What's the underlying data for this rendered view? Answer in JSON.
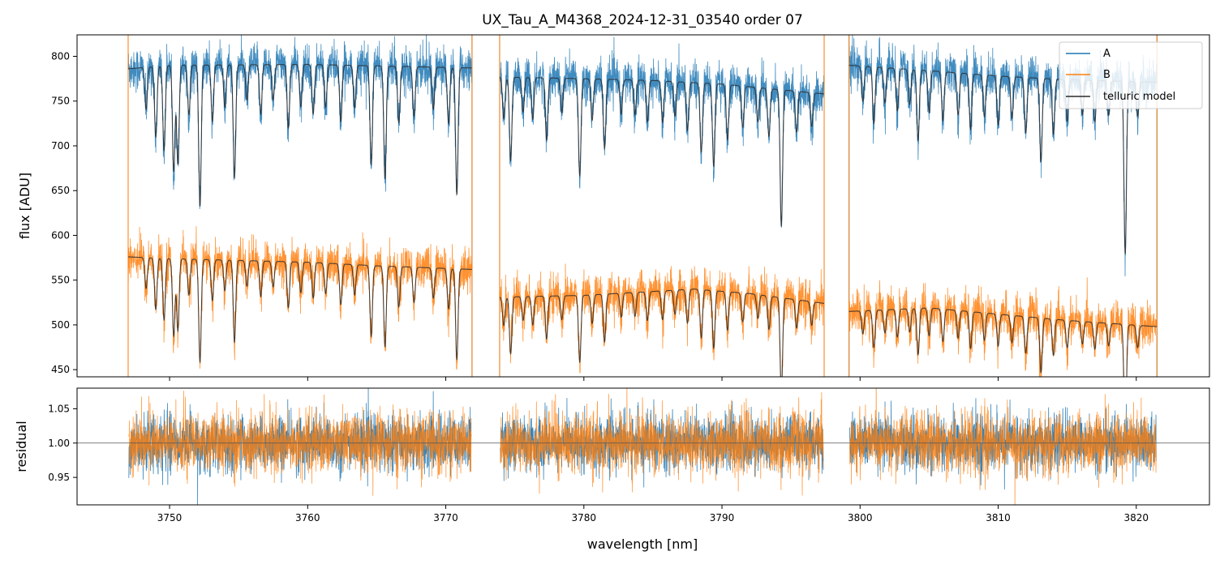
{
  "chart_data": [
    {
      "type": "line",
      "title": "UX_Tau_A_M4368_2024-12-31_03540  order 07",
      "ylabel": "flux [ADU]",
      "xlim": [
        3743.3,
        3825.3
      ],
      "ylim": [
        442,
        824
      ],
      "yticks": [
        450,
        500,
        550,
        600,
        650,
        700,
        750,
        800
      ],
      "legend": {
        "position": "top-right",
        "entries": [
          "A",
          "B",
          "telluric model"
        ]
      },
      "segments": [
        [
          3747.0,
          3771.9
        ],
        [
          3773.9,
          3797.4
        ],
        [
          3799.2,
          3821.5
        ]
      ],
      "continuum": {
        "A": [
          [
            3747.0,
            786
          ],
          [
            3750.0,
            790
          ],
          [
            3760.0,
            791
          ],
          [
            3771.9,
            787
          ],
          [
            3773.9,
            777
          ],
          [
            3780.0,
            775
          ],
          [
            3785.0,
            773
          ],
          [
            3790.0,
            769
          ],
          [
            3797.4,
            758
          ],
          [
            3799.2,
            790
          ],
          [
            3805.0,
            784
          ],
          [
            3810.0,
            778
          ],
          [
            3815.0,
            774
          ],
          [
            3821.5,
            771
          ]
        ],
        "B": [
          [
            3747.0,
            576
          ],
          [
            3750.0,
            574
          ],
          [
            3760.0,
            570
          ],
          [
            3765.0,
            566
          ],
          [
            3771.9,
            562
          ],
          [
            3773.9,
            531
          ],
          [
            3780.0,
            533
          ],
          [
            3788.0,
            540
          ],
          [
            3792.0,
            535
          ],
          [
            3797.4,
            524
          ],
          [
            3799.2,
            515
          ],
          [
            3805.0,
            519
          ],
          [
            3810.0,
            512
          ],
          [
            3815.0,
            505
          ],
          [
            3821.5,
            498
          ]
        ]
      },
      "telluric_lines": [
        {
          "x": 3748.3,
          "depth": 0.06
        },
        {
          "x": 3749.0,
          "depth": 0.1
        },
        {
          "x": 3749.6,
          "depth": 0.12
        },
        {
          "x": 3750.3,
          "depth": 0.15
        },
        {
          "x": 3750.6,
          "depth": 0.14
        },
        {
          "x": 3751.4,
          "depth": 0.07
        },
        {
          "x": 3752.2,
          "depth": 0.2
        },
        {
          "x": 3753.1,
          "depth": 0.08
        },
        {
          "x": 3754.0,
          "depth": 0.06
        },
        {
          "x": 3754.7,
          "depth": 0.16
        },
        {
          "x": 3755.6,
          "depth": 0.05
        },
        {
          "x": 3756.6,
          "depth": 0.07
        },
        {
          "x": 3757.5,
          "depth": 0.05
        },
        {
          "x": 3758.6,
          "depth": 0.09
        },
        {
          "x": 3759.5,
          "depth": 0.06
        },
        {
          "x": 3760.4,
          "depth": 0.07
        },
        {
          "x": 3761.3,
          "depth": 0.06
        },
        {
          "x": 3762.4,
          "depth": 0.08
        },
        {
          "x": 3763.4,
          "depth": 0.06
        },
        {
          "x": 3764.6,
          "depth": 0.14
        },
        {
          "x": 3765.6,
          "depth": 0.16
        },
        {
          "x": 3766.6,
          "depth": 0.08
        },
        {
          "x": 3767.7,
          "depth": 0.07
        },
        {
          "x": 3769.1,
          "depth": 0.06
        },
        {
          "x": 3770.2,
          "depth": 0.08
        },
        {
          "x": 3770.8,
          "depth": 0.18
        },
        {
          "x": 3774.2,
          "depth": 0.06
        },
        {
          "x": 3774.7,
          "depth": 0.12
        },
        {
          "x": 3775.6,
          "depth": 0.05
        },
        {
          "x": 3776.3,
          "depth": 0.06
        },
        {
          "x": 3777.3,
          "depth": 0.09
        },
        {
          "x": 3778.4,
          "depth": 0.05
        },
        {
          "x": 3779.7,
          "depth": 0.14
        },
        {
          "x": 3780.6,
          "depth": 0.06
        },
        {
          "x": 3781.5,
          "depth": 0.1
        },
        {
          "x": 3782.7,
          "depth": 0.05
        },
        {
          "x": 3783.7,
          "depth": 0.05
        },
        {
          "x": 3784.6,
          "depth": 0.06
        },
        {
          "x": 3785.7,
          "depth": 0.06
        },
        {
          "x": 3786.6,
          "depth": 0.05
        },
        {
          "x": 3787.5,
          "depth": 0.07
        },
        {
          "x": 3788.5,
          "depth": 0.1
        },
        {
          "x": 3789.4,
          "depth": 0.12
        },
        {
          "x": 3790.4,
          "depth": 0.08
        },
        {
          "x": 3791.5,
          "depth": 0.06
        },
        {
          "x": 3792.6,
          "depth": 0.05
        },
        {
          "x": 3793.4,
          "depth": 0.07
        },
        {
          "x": 3794.3,
          "depth": 0.2
        },
        {
          "x": 3795.4,
          "depth": 0.06
        },
        {
          "x": 3796.5,
          "depth": 0.05
        },
        {
          "x": 3800.2,
          "depth": 0.05
        },
        {
          "x": 3801.0,
          "depth": 0.08
        },
        {
          "x": 3801.8,
          "depth": 0.05
        },
        {
          "x": 3802.7,
          "depth": 0.06
        },
        {
          "x": 3803.6,
          "depth": 0.05
        },
        {
          "x": 3804.2,
          "depth": 0.1
        },
        {
          "x": 3805.0,
          "depth": 0.06
        },
        {
          "x": 3806.0,
          "depth": 0.07
        },
        {
          "x": 3807.1,
          "depth": 0.06
        },
        {
          "x": 3808.0,
          "depth": 0.08
        },
        {
          "x": 3809.0,
          "depth": 0.06
        },
        {
          "x": 3810.0,
          "depth": 0.07
        },
        {
          "x": 3811.0,
          "depth": 0.06
        },
        {
          "x": 3812.0,
          "depth": 0.08
        },
        {
          "x": 3813.1,
          "depth": 0.12
        },
        {
          "x": 3814.0,
          "depth": 0.08
        },
        {
          "x": 3815.0,
          "depth": 0.06
        },
        {
          "x": 3816.1,
          "depth": 0.05
        },
        {
          "x": 3817.0,
          "depth": 0.06
        },
        {
          "x": 3818.0,
          "depth": 0.05
        },
        {
          "x": 3819.2,
          "depth": 0.25
        },
        {
          "x": 3820.1,
          "depth": 0.05
        }
      ],
      "series": [
        {
          "name": "A",
          "color": "#1f77b4",
          "noise_sigma": 14
        },
        {
          "name": "B",
          "color": "#ff7f0e",
          "noise_sigma": 14
        },
        {
          "name": "telluric model",
          "color": "#2b2b2b"
        }
      ]
    },
    {
      "type": "line",
      "ylabel": "residual",
      "xlabel": "wavelength [nm]",
      "xlim": [
        3743.3,
        3825.3
      ],
      "ylim": [
        0.91,
        1.08
      ],
      "yticks": [
        "0.95",
        "1.00",
        "1.05"
      ],
      "xticks": [
        3750,
        3760,
        3770,
        3780,
        3790,
        3800,
        3810,
        3820
      ],
      "reference_line": 1.0,
      "series": [
        {
          "name": "A",
          "color": "#1f77b4",
          "noise_sigma": 0.025
        },
        {
          "name": "B",
          "color": "#ff7f0e",
          "noise_sigma": 0.028
        }
      ]
    }
  ],
  "colors": {
    "A": "#1f77b4",
    "B": "#ff7f0e",
    "telluric": "#2b2b2b"
  }
}
